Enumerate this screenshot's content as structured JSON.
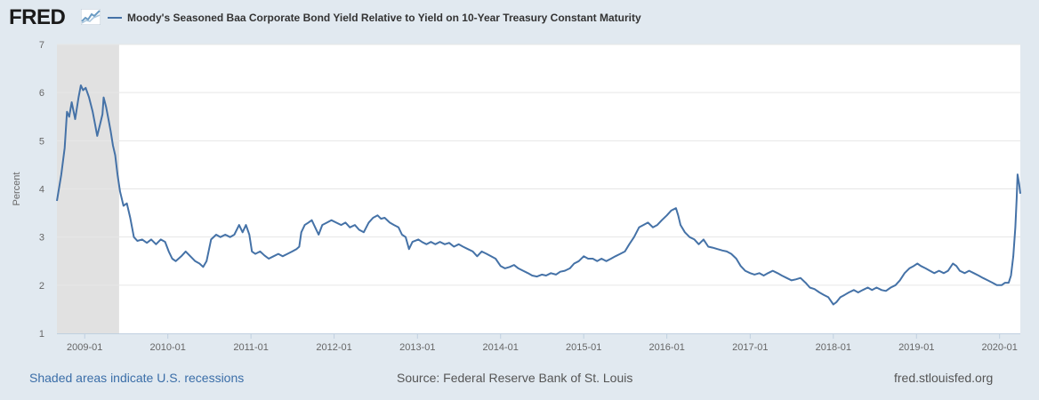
{
  "header": {
    "logo_text": "FRED",
    "logo_icon": "trend-graph-icon"
  },
  "legend": {
    "label": "Moody's Seasoned Baa Corporate Bond Yield Relative to Yield on 10-Year Treasury Constant Maturity"
  },
  "footer": {
    "recession_note": "Shaded areas indicate U.S. recessions",
    "source": "Source: Federal Reserve Bank of St. Louis",
    "site": "fred.stlouisfed.org"
  },
  "colors": {
    "line": "#4572a7",
    "recession": "#e1e1e1",
    "background": "#e1e9f0",
    "plot": "#ffffff",
    "grid": "#e6e6e6"
  },
  "chart_data": {
    "type": "line",
    "title": "Moody's Seasoned Baa Corporate Bond Yield Relative to Yield on 10-Year Treasury Constant Maturity",
    "xlabel": "",
    "ylabel": "Percent",
    "ylim": [
      1,
      7
    ],
    "yticks": [
      "1",
      "2",
      "3",
      "4",
      "5",
      "6",
      "7"
    ],
    "xlim": [
      "2008-09-01",
      "2020-04-01"
    ],
    "xticks": [
      {
        "date": "2009-01-01",
        "label": "2009-01"
      },
      {
        "date": "2010-01-01",
        "label": "2010-01"
      },
      {
        "date": "2011-01-01",
        "label": "2011-01"
      },
      {
        "date": "2012-01-01",
        "label": "2012-01"
      },
      {
        "date": "2013-01-01",
        "label": "2013-01"
      },
      {
        "date": "2014-01-01",
        "label": "2014-01"
      },
      {
        "date": "2015-01-01",
        "label": "2015-01"
      },
      {
        "date": "2016-01-01",
        "label": "2016-01"
      },
      {
        "date": "2017-01-01",
        "label": "2017-01"
      },
      {
        "date": "2018-01-01",
        "label": "2018-01"
      },
      {
        "date": "2019-01-01",
        "label": "2019-01"
      },
      {
        "date": "2020-01-01",
        "label": "2020-01"
      }
    ],
    "grid": true,
    "legend_position": "top-left",
    "recessions": [
      [
        "2008-09-01",
        "2009-06-01"
      ]
    ],
    "series": [
      {
        "name": "Moody's Seasoned Baa Corporate Bond Yield Relative to Yield on 10-Year Treasury Constant Maturity",
        "points": [
          [
            "2008-09-01",
            3.75
          ],
          [
            "2008-09-20",
            4.3
          ],
          [
            "2008-10-05",
            4.85
          ],
          [
            "2008-10-15",
            5.6
          ],
          [
            "2008-10-25",
            5.5
          ],
          [
            "2008-11-05",
            5.8
          ],
          [
            "2008-11-20",
            5.45
          ],
          [
            "2008-12-05",
            5.9
          ],
          [
            "2008-12-15",
            6.15
          ],
          [
            "2008-12-25",
            6.05
          ],
          [
            "2009-01-05",
            6.1
          ],
          [
            "2009-01-20",
            5.9
          ],
          [
            "2009-02-05",
            5.6
          ],
          [
            "2009-02-15",
            5.35
          ],
          [
            "2009-02-25",
            5.1
          ],
          [
            "2009-03-10",
            5.35
          ],
          [
            "2009-03-20",
            5.55
          ],
          [
            "2009-03-25",
            5.9
          ],
          [
            "2009-04-05",
            5.7
          ],
          [
            "2009-04-15",
            5.45
          ],
          [
            "2009-04-25",
            5.2
          ],
          [
            "2009-05-05",
            4.9
          ],
          [
            "2009-05-15",
            4.7
          ],
          [
            "2009-05-25",
            4.3
          ],
          [
            "2009-06-05",
            3.95
          ],
          [
            "2009-06-20",
            3.65
          ],
          [
            "2009-07-05",
            3.7
          ],
          [
            "2009-07-20",
            3.4
          ],
          [
            "2009-08-05",
            3.0
          ],
          [
            "2009-08-20",
            2.92
          ],
          [
            "2009-09-10",
            2.95
          ],
          [
            "2009-10-01",
            2.88
          ],
          [
            "2009-10-20",
            2.95
          ],
          [
            "2009-11-10",
            2.85
          ],
          [
            "2009-12-01",
            2.95
          ],
          [
            "2009-12-20",
            2.9
          ],
          [
            "2010-01-05",
            2.7
          ],
          [
            "2010-01-20",
            2.55
          ],
          [
            "2010-02-05",
            2.5
          ],
          [
            "2010-03-01",
            2.6
          ],
          [
            "2010-03-20",
            2.7
          ],
          [
            "2010-04-10",
            2.6
          ],
          [
            "2010-05-01",
            2.5
          ],
          [
            "2010-05-20",
            2.45
          ],
          [
            "2010-06-05",
            2.38
          ],
          [
            "2010-06-20",
            2.5
          ],
          [
            "2010-07-10",
            2.95
          ],
          [
            "2010-08-01",
            3.05
          ],
          [
            "2010-08-20",
            3.0
          ],
          [
            "2010-09-10",
            3.05
          ],
          [
            "2010-10-01",
            3.0
          ],
          [
            "2010-10-20",
            3.05
          ],
          [
            "2010-11-10",
            3.25
          ],
          [
            "2010-11-25",
            3.1
          ],
          [
            "2010-12-10",
            3.25
          ],
          [
            "2010-12-25",
            3.05
          ],
          [
            "2011-01-05",
            2.7
          ],
          [
            "2011-01-20",
            2.65
          ],
          [
            "2011-02-10",
            2.7
          ],
          [
            "2011-03-01",
            2.62
          ],
          [
            "2011-03-20",
            2.55
          ],
          [
            "2011-04-10",
            2.6
          ],
          [
            "2011-05-01",
            2.65
          ],
          [
            "2011-05-20",
            2.6
          ],
          [
            "2011-06-10",
            2.65
          ],
          [
            "2011-07-01",
            2.7
          ],
          [
            "2011-07-20",
            2.75
          ],
          [
            "2011-08-01",
            2.8
          ],
          [
            "2011-08-10",
            3.1
          ],
          [
            "2011-08-25",
            3.25
          ],
          [
            "2011-09-10",
            3.3
          ],
          [
            "2011-09-25",
            3.35
          ],
          [
            "2011-10-10",
            3.2
          ],
          [
            "2011-10-25",
            3.05
          ],
          [
            "2011-11-10",
            3.25
          ],
          [
            "2011-12-01",
            3.3
          ],
          [
            "2011-12-20",
            3.35
          ],
          [
            "2012-01-10",
            3.3
          ],
          [
            "2012-02-01",
            3.25
          ],
          [
            "2012-02-20",
            3.3
          ],
          [
            "2012-03-10",
            3.2
          ],
          [
            "2012-04-01",
            3.25
          ],
          [
            "2012-04-20",
            3.15
          ],
          [
            "2012-05-10",
            3.1
          ],
          [
            "2012-06-01",
            3.3
          ],
          [
            "2012-06-20",
            3.4
          ],
          [
            "2012-07-10",
            3.45
          ],
          [
            "2012-07-25",
            3.38
          ],
          [
            "2012-08-10",
            3.4
          ],
          [
            "2012-09-01",
            3.3
          ],
          [
            "2012-09-20",
            3.25
          ],
          [
            "2012-10-10",
            3.2
          ],
          [
            "2012-10-25",
            3.05
          ],
          [
            "2012-11-10",
            3.0
          ],
          [
            "2012-11-25",
            2.75
          ],
          [
            "2012-12-10",
            2.9
          ],
          [
            "2013-01-05",
            2.95
          ],
          [
            "2013-01-20",
            2.9
          ],
          [
            "2013-02-10",
            2.85
          ],
          [
            "2013-03-01",
            2.9
          ],
          [
            "2013-03-20",
            2.85
          ],
          [
            "2013-04-10",
            2.9
          ],
          [
            "2013-05-01",
            2.85
          ],
          [
            "2013-05-20",
            2.88
          ],
          [
            "2013-06-10",
            2.8
          ],
          [
            "2013-07-01",
            2.85
          ],
          [
            "2013-07-20",
            2.8
          ],
          [
            "2013-08-10",
            2.75
          ],
          [
            "2013-09-01",
            2.7
          ],
          [
            "2013-09-20",
            2.6
          ],
          [
            "2013-10-10",
            2.7
          ],
          [
            "2013-11-01",
            2.65
          ],
          [
            "2013-11-20",
            2.6
          ],
          [
            "2013-12-10",
            2.55
          ],
          [
            "2014-01-01",
            2.4
          ],
          [
            "2014-01-20",
            2.35
          ],
          [
            "2014-02-10",
            2.38
          ],
          [
            "2014-03-01",
            2.42
          ],
          [
            "2014-03-20",
            2.35
          ],
          [
            "2014-04-10",
            2.3
          ],
          [
            "2014-05-01",
            2.25
          ],
          [
            "2014-05-20",
            2.2
          ],
          [
            "2014-06-10",
            2.18
          ],
          [
            "2014-07-01",
            2.22
          ],
          [
            "2014-07-20",
            2.2
          ],
          [
            "2014-08-10",
            2.25
          ],
          [
            "2014-09-01",
            2.22
          ],
          [
            "2014-09-20",
            2.28
          ],
          [
            "2014-10-10",
            2.3
          ],
          [
            "2014-11-01",
            2.35
          ],
          [
            "2014-11-20",
            2.45
          ],
          [
            "2014-12-10",
            2.5
          ],
          [
            "2015-01-01",
            2.6
          ],
          [
            "2015-01-20",
            2.55
          ],
          [
            "2015-02-10",
            2.55
          ],
          [
            "2015-03-01",
            2.5
          ],
          [
            "2015-03-20",
            2.55
          ],
          [
            "2015-04-10",
            2.5
          ],
          [
            "2015-05-01",
            2.55
          ],
          [
            "2015-05-20",
            2.6
          ],
          [
            "2015-06-10",
            2.65
          ],
          [
            "2015-07-01",
            2.7
          ],
          [
            "2015-07-20",
            2.85
          ],
          [
            "2015-08-10",
            3.0
          ],
          [
            "2015-09-01",
            3.2
          ],
          [
            "2015-09-20",
            3.25
          ],
          [
            "2015-10-10",
            3.3
          ],
          [
            "2015-11-01",
            3.2
          ],
          [
            "2015-11-20",
            3.25
          ],
          [
            "2015-12-10",
            3.35
          ],
          [
            "2016-01-01",
            3.45
          ],
          [
            "2016-01-20",
            3.55
          ],
          [
            "2016-02-10",
            3.6
          ],
          [
            "2016-02-20",
            3.45
          ],
          [
            "2016-03-01",
            3.25
          ],
          [
            "2016-03-20",
            3.1
          ],
          [
            "2016-04-10",
            3.0
          ],
          [
            "2016-05-01",
            2.95
          ],
          [
            "2016-05-20",
            2.85
          ],
          [
            "2016-06-10",
            2.95
          ],
          [
            "2016-07-01",
            2.8
          ],
          [
            "2016-07-20",
            2.78
          ],
          [
            "2016-08-10",
            2.75
          ],
          [
            "2016-09-01",
            2.72
          ],
          [
            "2016-09-20",
            2.7
          ],
          [
            "2016-10-10",
            2.65
          ],
          [
            "2016-11-01",
            2.55
          ],
          [
            "2016-11-20",
            2.4
          ],
          [
            "2016-12-10",
            2.3
          ],
          [
            "2017-01-01",
            2.25
          ],
          [
            "2017-01-20",
            2.22
          ],
          [
            "2017-02-10",
            2.25
          ],
          [
            "2017-03-01",
            2.2
          ],
          [
            "2017-03-20",
            2.25
          ],
          [
            "2017-04-10",
            2.3
          ],
          [
            "2017-05-01",
            2.25
          ],
          [
            "2017-05-20",
            2.2
          ],
          [
            "2017-06-10",
            2.15
          ],
          [
            "2017-07-01",
            2.1
          ],
          [
            "2017-07-20",
            2.12
          ],
          [
            "2017-08-10",
            2.15
          ],
          [
            "2017-09-01",
            2.05
          ],
          [
            "2017-09-20",
            1.95
          ],
          [
            "2017-10-10",
            1.92
          ],
          [
            "2017-11-01",
            1.85
          ],
          [
            "2017-11-20",
            1.8
          ],
          [
            "2017-12-10",
            1.75
          ],
          [
            "2018-01-01",
            1.6
          ],
          [
            "2018-01-15",
            1.65
          ],
          [
            "2018-02-01",
            1.75
          ],
          [
            "2018-02-20",
            1.8
          ],
          [
            "2018-03-10",
            1.85
          ],
          [
            "2018-04-01",
            1.9
          ],
          [
            "2018-04-20",
            1.85
          ],
          [
            "2018-05-10",
            1.9
          ],
          [
            "2018-06-01",
            1.95
          ],
          [
            "2018-06-20",
            1.9
          ],
          [
            "2018-07-10",
            1.95
          ],
          [
            "2018-08-01",
            1.9
          ],
          [
            "2018-08-20",
            1.88
          ],
          [
            "2018-09-10",
            1.95
          ],
          [
            "2018-10-01",
            2.0
          ],
          [
            "2018-10-20",
            2.1
          ],
          [
            "2018-11-10",
            2.25
          ],
          [
            "2018-12-01",
            2.35
          ],
          [
            "2018-12-20",
            2.4
          ],
          [
            "2019-01-05",
            2.45
          ],
          [
            "2019-01-20",
            2.4
          ],
          [
            "2019-02-10",
            2.35
          ],
          [
            "2019-03-01",
            2.3
          ],
          [
            "2019-03-20",
            2.25
          ],
          [
            "2019-04-10",
            2.3
          ],
          [
            "2019-05-01",
            2.25
          ],
          [
            "2019-05-20",
            2.3
          ],
          [
            "2019-06-10",
            2.45
          ],
          [
            "2019-06-25",
            2.4
          ],
          [
            "2019-07-10",
            2.3
          ],
          [
            "2019-08-01",
            2.25
          ],
          [
            "2019-08-20",
            2.3
          ],
          [
            "2019-09-10",
            2.25
          ],
          [
            "2019-10-01",
            2.2
          ],
          [
            "2019-10-20",
            2.15
          ],
          [
            "2019-11-10",
            2.1
          ],
          [
            "2019-12-01",
            2.05
          ],
          [
            "2019-12-20",
            2.0
          ],
          [
            "2020-01-10",
            2.0
          ],
          [
            "2020-01-25",
            2.05
          ],
          [
            "2020-02-10",
            2.05
          ],
          [
            "2020-02-20",
            2.2
          ],
          [
            "2020-03-01",
            2.6
          ],
          [
            "2020-03-10",
            3.2
          ],
          [
            "2020-03-16",
            3.8
          ],
          [
            "2020-03-20",
            4.3
          ],
          [
            "2020-03-27",
            4.1
          ],
          [
            "2020-04-01",
            3.9
          ]
        ]
      }
    ]
  }
}
